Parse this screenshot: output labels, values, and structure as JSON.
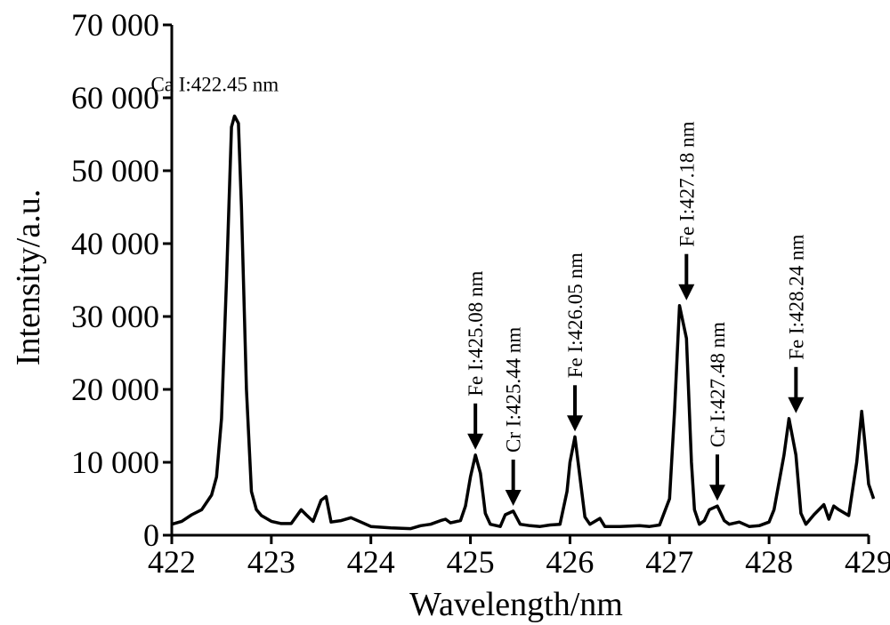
{
  "chart_data": {
    "type": "line",
    "xlabel": "Wavelength/nm",
    "ylabel": "Intensity/a.u.",
    "xlim": [
      422,
      429
    ],
    "ylim": [
      0,
      70000
    ],
    "x_ticks": [
      422,
      423,
      424,
      425,
      426,
      427,
      428,
      429
    ],
    "x_tick_labels": [
      "422",
      "423",
      "424",
      "425",
      "426",
      "427",
      "428",
      "429"
    ],
    "y_ticks": [
      0,
      10000,
      20000,
      30000,
      40000,
      50000,
      60000,
      70000
    ],
    "y_tick_labels": [
      "0",
      "10 000",
      "20 000",
      "30 000",
      "40 000",
      "50 000",
      "60 000",
      "70 000"
    ],
    "grid": false,
    "series": [
      {
        "x": [
          422.0,
          422.1,
          422.2,
          422.3,
          422.4,
          422.45,
          422.5,
          422.55,
          422.6,
          422.63,
          422.67,
          422.7,
          422.75,
          422.8,
          422.85,
          422.9,
          423.0,
          423.1,
          423.2,
          423.3,
          423.35,
          423.42,
          423.5,
          423.55,
          423.6,
          423.65,
          423.7,
          423.8,
          423.9,
          424.0,
          424.2,
          424.4,
          424.5,
          424.6,
          424.7,
          424.75,
          424.8,
          424.9,
          424.95,
          425.0,
          425.05,
          425.1,
          425.15,
          425.2,
          425.3,
          425.35,
          425.43,
          425.5,
          425.6,
          425.7,
          425.8,
          425.9,
          425.97,
          426.0,
          426.05,
          426.1,
          426.15,
          426.2,
          426.3,
          426.35,
          426.5,
          426.7,
          426.8,
          426.9,
          427.0,
          427.05,
          427.1,
          427.17,
          427.22,
          427.25,
          427.3,
          427.35,
          427.4,
          427.48,
          427.55,
          427.6,
          427.7,
          427.8,
          427.9,
          428.0,
          428.05,
          428.15,
          428.2,
          428.27,
          428.32,
          428.37,
          428.45,
          428.55,
          428.6,
          428.65,
          428.7,
          428.8,
          428.88,
          428.93,
          428.96,
          429.0,
          429.05
        ],
        "y": [
          1500,
          1900,
          2800,
          3500,
          5500,
          8000,
          16000,
          35000,
          56000,
          57500,
          56500,
          45000,
          20000,
          6000,
          3500,
          2700,
          1900,
          1600,
          1600,
          3500,
          2800,
          1900,
          4800,
          5300,
          1800,
          1900,
          2000,
          2400,
          1800,
          1200,
          1000,
          900,
          1300,
          1500,
          2000,
          2200,
          1700,
          2000,
          4000,
          8000,
          11000,
          8500,
          3000,
          1500,
          1200,
          2800,
          3300,
          1500,
          1300,
          1200,
          1400,
          1500,
          6000,
          10000,
          13500,
          8000,
          2500,
          1500,
          2300,
          1200,
          1200,
          1300,
          1200,
          1400,
          5000,
          17000,
          31500,
          27000,
          10000,
          3500,
          1500,
          2000,
          3500,
          4000,
          2000,
          1500,
          1800,
          1200,
          1300,
          1800,
          3500,
          11000,
          16000,
          11000,
          3000,
          1500,
          2800,
          4200,
          2200,
          4000,
          3500,
          2700,
          10000,
          17000,
          13000,
          7000,
          5000
        ]
      }
    ],
    "annotations": [
      {
        "text": "Ca I:422.45 nm",
        "x": 422.45,
        "y": 57500,
        "arrow": false,
        "vertical": false
      },
      {
        "text": "Fe I:425.08 nm",
        "x": 425.05,
        "y": 11000,
        "arrow": true,
        "vertical": true
      },
      {
        "text": "Cr I:425.44 nm",
        "x": 425.43,
        "y": 3300,
        "arrow": true,
        "vertical": true
      },
      {
        "text": "Fe I:426.05 nm",
        "x": 426.05,
        "y": 13500,
        "arrow": true,
        "vertical": true
      },
      {
        "text": "Fe I:427.18 nm",
        "x": 427.17,
        "y": 31500,
        "arrow": true,
        "vertical": true
      },
      {
        "text": "Cr I:427.48 nm",
        "x": 427.48,
        "y": 4000,
        "arrow": true,
        "vertical": true
      },
      {
        "text": "Fe I:428.24 nm",
        "x": 428.27,
        "y": 16000,
        "arrow": true,
        "vertical": true
      }
    ]
  }
}
